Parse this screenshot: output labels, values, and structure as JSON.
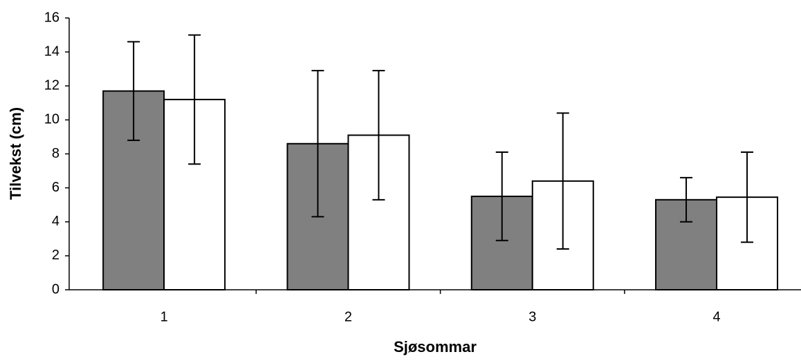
{
  "chart_data": {
    "type": "bar",
    "xlabel": "Sjøsommar",
    "ylabel": "Tilvekst (cm)",
    "categories": [
      "1",
      "2",
      "3",
      "4"
    ],
    "series": [
      {
        "color": "#808080",
        "values": [
          11.7,
          8.6,
          5.5,
          5.3
        ],
        "errors": [
          2.9,
          4.3,
          2.6,
          1.3
        ]
      },
      {
        "color": "#ffffff",
        "values": [
          11.2,
          9.1,
          6.4,
          5.45
        ],
        "errors": [
          3.8,
          3.8,
          4.0,
          2.65
        ]
      }
    ],
    "ylim": [
      0,
      16
    ],
    "yticks": [
      0,
      2,
      4,
      6,
      8,
      10,
      12,
      14,
      16
    ],
    "grid": false
  }
}
